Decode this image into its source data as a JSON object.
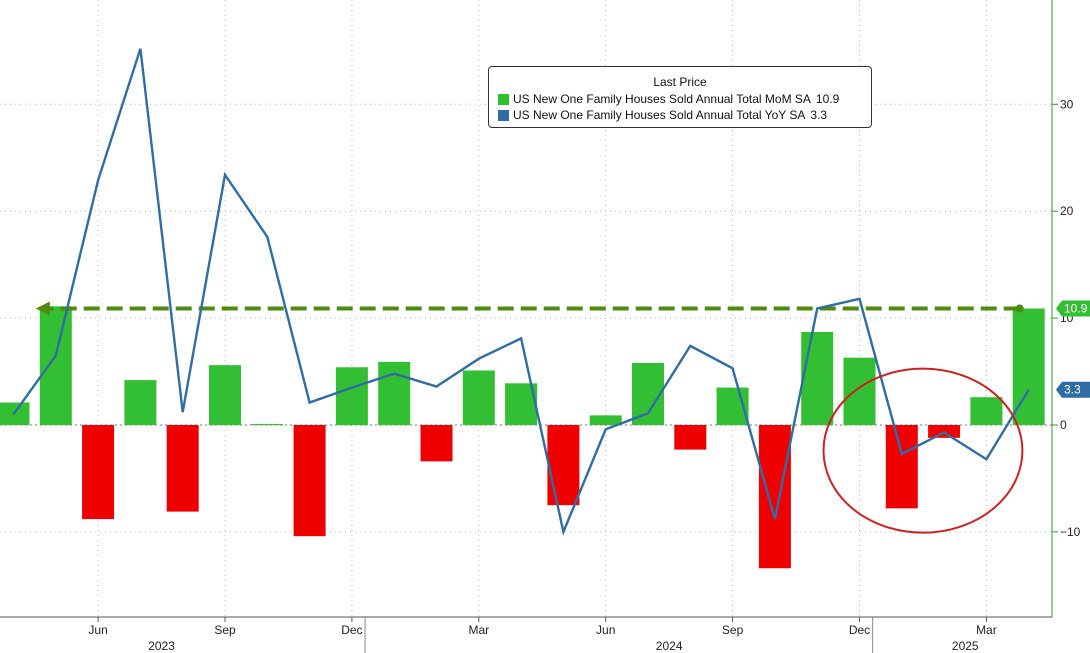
{
  "chart_data": {
    "type": "bar",
    "legend_title": "Last Price",
    "legend_position": "top-center",
    "x": [
      "2023-04",
      "2023-05",
      "2023-06",
      "2023-07",
      "2023-08",
      "2023-09",
      "2023-10",
      "2023-11",
      "2023-12",
      "2024-01",
      "2024-02",
      "2024-03",
      "2024-04",
      "2024-05",
      "2024-06",
      "2024-07",
      "2024-08",
      "2024-09",
      "2024-10",
      "2024-11",
      "2024-12",
      "2025-01",
      "2025-02",
      "2025-03",
      "2025-04"
    ],
    "x_tick_labels": [
      {
        "x": "2023-06",
        "label": "Jun"
      },
      {
        "x": "2023-09",
        "label": "Sep"
      },
      {
        "x": "2023-12",
        "label": "Dec"
      },
      {
        "x": "2024-03",
        "label": "Mar"
      },
      {
        "x": "2024-06",
        "label": "Jun"
      },
      {
        "x": "2024-09",
        "label": "Sep"
      },
      {
        "x": "2024-12",
        "label": "Dec"
      },
      {
        "x": "2025-03",
        "label": "Mar"
      }
    ],
    "year_labels": [
      {
        "x": "2023-07",
        "label": "2023"
      },
      {
        "x": "2024-07",
        "label": "2024"
      },
      {
        "x": "2025-02",
        "label": "2025"
      }
    ],
    "ylim": [
      -18,
      40
    ],
    "y_ticks": [
      -10,
      0,
      10,
      20,
      30
    ],
    "grid": true,
    "series": [
      {
        "name": "US New One Family Houses Sold Annual Total MoM SA",
        "type": "bar",
        "last_value": "10.9",
        "color": "#33bf33",
        "negative_color": "#ee0000",
        "values": [
          2.1,
          11.1,
          -8.8,
          4.2,
          -8.1,
          5.6,
          0.1,
          -10.4,
          5.4,
          5.9,
          -3.4,
          5.1,
          3.9,
          -7.5,
          0.9,
          5.8,
          -2.3,
          3.5,
          -13.4,
          8.7,
          6.3,
          -7.8,
          -1.2,
          2.6,
          10.9
        ]
      },
      {
        "name": "US New One Family Houses Sold Annual Total YoY SA",
        "type": "line",
        "last_value": "3.3",
        "color": "#2f6da4",
        "values": [
          1.0,
          6.5,
          22.9,
          35.2,
          1.2,
          23.4,
          17.6,
          2.1,
          3.5,
          4.8,
          3.6,
          6.2,
          8.1,
          -10.0,
          -0.4,
          1.1,
          7.4,
          5.3,
          -8.8,
          10.9,
          11.8,
          -2.7,
          -0.7,
          -3.2,
          3.3
        ]
      }
    ],
    "reference_line": {
      "value": 10.9,
      "from": "2025-04",
      "to": "2023-05",
      "color": "#4f8a10",
      "style": "dashed-arrow"
    },
    "highlight_ellipse": {
      "from": "2024-12",
      "to": "2025-03",
      "y_center": -2.4,
      "color": "#cc2222"
    },
    "last_value_tags": [
      {
        "label": "10.9",
        "value": 10.9,
        "color": "#33bf33"
      },
      {
        "label": "3.3",
        "value": 3.3,
        "color": "#2f6da4"
      }
    ]
  }
}
